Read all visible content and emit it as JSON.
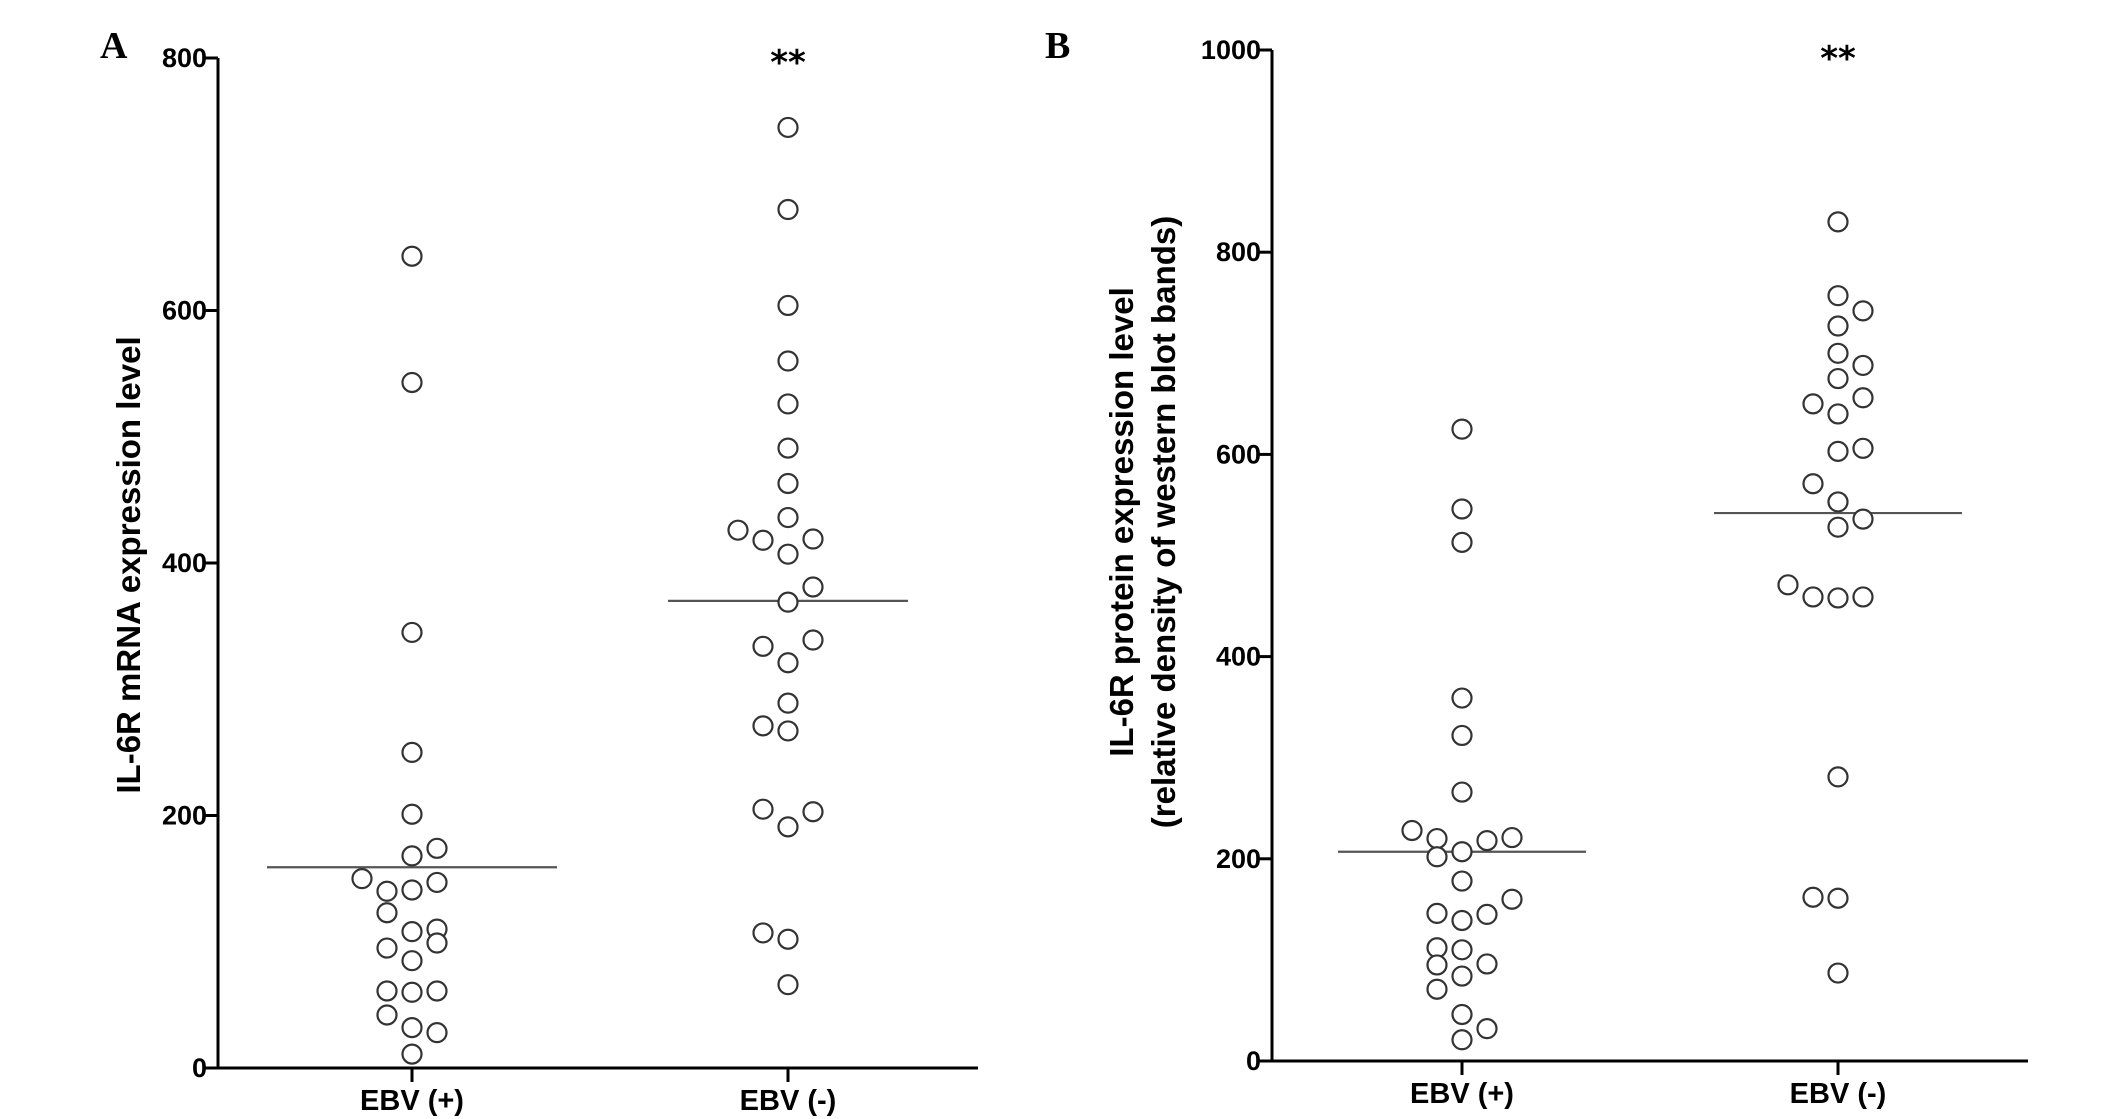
{
  "chart_data": [
    {
      "type": "scatter",
      "panel_label": "A",
      "ylabel": "IL-6R mRNA expression level",
      "xlabel": "",
      "ylim": [
        0,
        800
      ],
      "yticks": [
        0,
        200,
        400,
        600,
        800
      ],
      "categories": [
        "EBV (+)",
        "EBV (-)"
      ],
      "grid": false,
      "significance": {
        "category": "EBV (-)",
        "text": "**"
      },
      "series": [
        {
          "category": "EBV (+)",
          "median": 159,
          "points": [
            {
              "x": 0,
              "y": 643
            },
            {
              "x": 0,
              "y": 543
            },
            {
              "x": 0,
              "y": 345
            },
            {
              "x": 0,
              "y": 250
            },
            {
              "x": 0,
              "y": 201
            },
            {
              "x": 0,
              "y": 168
            },
            {
              "x": 1,
              "y": 174
            },
            {
              "x": -1,
              "y": 140
            },
            {
              "x": 0,
              "y": 141
            },
            {
              "x": 1,
              "y": 147
            },
            {
              "x": -2,
              "y": 150
            },
            {
              "x": -1,
              "y": 123
            },
            {
              "x": 0,
              "y": 108
            },
            {
              "x": 1,
              "y": 110
            },
            {
              "x": -1,
              "y": 95
            },
            {
              "x": 1,
              "y": 99
            },
            {
              "x": 0,
              "y": 85
            },
            {
              "x": -1,
              "y": 61
            },
            {
              "x": 0,
              "y": 60
            },
            {
              "x": 1,
              "y": 61
            },
            {
              "x": -1,
              "y": 42
            },
            {
              "x": 0,
              "y": 32
            },
            {
              "x": 1,
              "y": 28
            },
            {
              "x": 0,
              "y": 11
            }
          ]
        },
        {
          "category": "EBV (-)",
          "median": 370,
          "points": [
            {
              "x": 0,
              "y": 745
            },
            {
              "x": 0,
              "y": 680
            },
            {
              "x": 0,
              "y": 604
            },
            {
              "x": 0,
              "y": 560
            },
            {
              "x": 0,
              "y": 526
            },
            {
              "x": 0,
              "y": 491
            },
            {
              "x": 0,
              "y": 463
            },
            {
              "x": 0,
              "y": 436
            },
            {
              "x": -2,
              "y": 426
            },
            {
              "x": -1,
              "y": 418
            },
            {
              "x": 1,
              "y": 419
            },
            {
              "x": 0,
              "y": 407
            },
            {
              "x": 1,
              "y": 381
            },
            {
              "x": 0,
              "y": 369
            },
            {
              "x": 1,
              "y": 339
            },
            {
              "x": -1,
              "y": 334
            },
            {
              "x": 0,
              "y": 321
            },
            {
              "x": 0,
              "y": 289
            },
            {
              "x": -1,
              "y": 271
            },
            {
              "x": 0,
              "y": 267
            },
            {
              "x": -1,
              "y": 205
            },
            {
              "x": 1,
              "y": 203
            },
            {
              "x": 0,
              "y": 191
            },
            {
              "x": -1,
              "y": 107
            },
            {
              "x": 0,
              "y": 102
            },
            {
              "x": 0,
              "y": 66
            }
          ]
        }
      ]
    },
    {
      "type": "scatter",
      "panel_label": "B",
      "ylabel_lines": [
        "IL-6R protein expression level",
        "(relative density of western blot bands)"
      ],
      "xlabel": "",
      "ylim": [
        0,
        1000
      ],
      "yticks": [
        0,
        200,
        400,
        600,
        800,
        1000
      ],
      "categories": [
        "EBV (+)",
        "EBV (-)"
      ],
      "grid": false,
      "significance": {
        "category": "EBV (-)",
        "text": "**"
      },
      "series": [
        {
          "category": "EBV (+)",
          "median": 207,
          "points": [
            {
              "x": 0,
              "y": 625
            },
            {
              "x": 0,
              "y": 546
            },
            {
              "x": 0,
              "y": 513
            },
            {
              "x": 0,
              "y": 359
            },
            {
              "x": 0,
              "y": 322
            },
            {
              "x": 0,
              "y": 266
            },
            {
              "x": -2,
              "y": 228
            },
            {
              "x": -1,
              "y": 220
            },
            {
              "x": 1,
              "y": 218
            },
            {
              "x": 2,
              "y": 221
            },
            {
              "x": -1,
              "y": 202
            },
            {
              "x": 0,
              "y": 207
            },
            {
              "x": 0,
              "y": 178
            },
            {
              "x": 2,
              "y": 160
            },
            {
              "x": -1,
              "y": 146
            },
            {
              "x": 1,
              "y": 145
            },
            {
              "x": 0,
              "y": 139
            },
            {
              "x": -1,
              "y": 112
            },
            {
              "x": 0,
              "y": 110
            },
            {
              "x": -1,
              "y": 95
            },
            {
              "x": 1,
              "y": 96
            },
            {
              "x": 0,
              "y": 84
            },
            {
              "x": -1,
              "y": 71
            },
            {
              "x": 0,
              "y": 46
            },
            {
              "x": 1,
              "y": 32
            },
            {
              "x": 0,
              "y": 21
            }
          ]
        },
        {
          "category": "EBV (-)",
          "median": 542,
          "points": [
            {
              "x": 0,
              "y": 830
            },
            {
              "x": 0,
              "y": 757
            },
            {
              "x": 1,
              "y": 742
            },
            {
              "x": 0,
              "y": 727
            },
            {
              "x": 0,
              "y": 700
            },
            {
              "x": 1,
              "y": 688
            },
            {
              "x": 0,
              "y": 675
            },
            {
              "x": -1,
              "y": 650
            },
            {
              "x": 1,
              "y": 656
            },
            {
              "x": 0,
              "y": 640
            },
            {
              "x": 0,
              "y": 603
            },
            {
              "x": 1,
              "y": 606
            },
            {
              "x": -1,
              "y": 571
            },
            {
              "x": 0,
              "y": 553
            },
            {
              "x": 1,
              "y": 536
            },
            {
              "x": 0,
              "y": 528
            },
            {
              "x": -2,
              "y": 471
            },
            {
              "x": -1,
              "y": 459
            },
            {
              "x": 0,
              "y": 458
            },
            {
              "x": 1,
              "y": 459
            },
            {
              "x": 0,
              "y": 281
            },
            {
              "x": -1,
              "y": 162
            },
            {
              "x": 0,
              "y": 161
            },
            {
              "x": 0,
              "y": 87
            }
          ]
        }
      ]
    }
  ]
}
